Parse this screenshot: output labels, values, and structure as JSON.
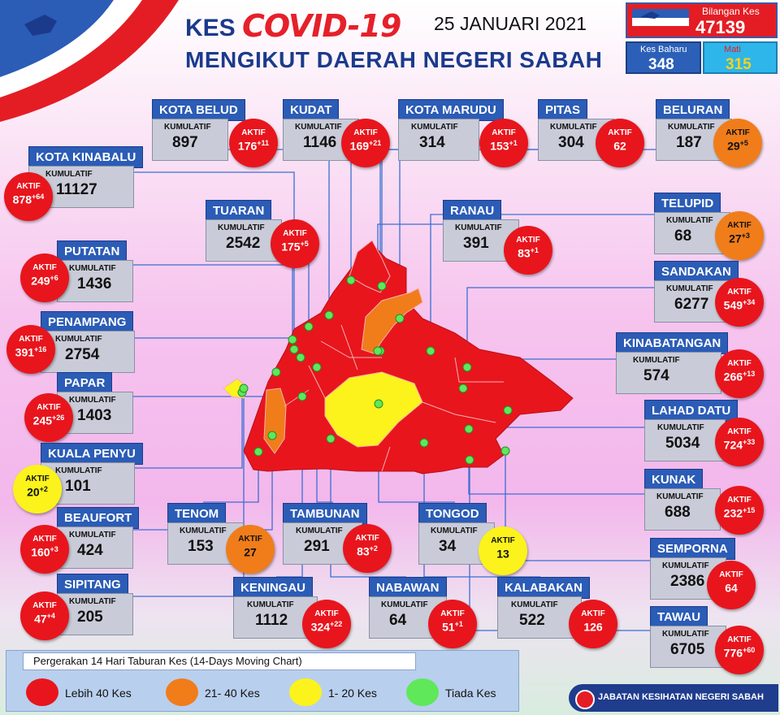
{
  "header": {
    "kes": "KES",
    "covid": "COVID-19",
    "date": "25 JANUARI 2021",
    "subtitle": "MENGIKUT DAERAH NEGERI SABAH"
  },
  "stats": {
    "total_label": "Bilangan Kes",
    "total_value": "47139",
    "new_label": "Kes Baharu",
    "new_value": "348",
    "dead_label": "Mati",
    "dead_value": "315"
  },
  "kumulatif_label": "KUMULATIF",
  "aktif_label": "AKTIF",
  "districts": [
    {
      "name": "KOTA BELUD",
      "kumulatif": "897",
      "aktif": "176",
      "aktif_new": "+11",
      "level": "red"
    },
    {
      "name": "KUDAT",
      "kumulatif": "1146",
      "aktif": "169",
      "aktif_new": "+21",
      "level": "red"
    },
    {
      "name": "KOTA MARUDU",
      "kumulatif": "314",
      "aktif": "153",
      "aktif_new": "+1",
      "level": "red"
    },
    {
      "name": "PITAS",
      "kumulatif": "304",
      "aktif": "62",
      "aktif_new": "",
      "level": "red"
    },
    {
      "name": "BELURAN",
      "kumulatif": "187",
      "aktif": "29",
      "aktif_new": "+5",
      "level": "orange"
    },
    {
      "name": "KOTA KINABALU",
      "kumulatif": "11127",
      "aktif": "878",
      "aktif_new": "+64",
      "level": "red"
    },
    {
      "name": "TUARAN",
      "kumulatif": "2542",
      "aktif": "175",
      "aktif_new": "+5",
      "level": "red"
    },
    {
      "name": "RANAU",
      "kumulatif": "391",
      "aktif": "83",
      "aktif_new": "+1",
      "level": "red"
    },
    {
      "name": "TELUPID",
      "kumulatif": "68",
      "aktif": "27",
      "aktif_new": "+3",
      "level": "orange"
    },
    {
      "name": "PUTATAN",
      "kumulatif": "1436",
      "aktif": "249",
      "aktif_new": "+6",
      "level": "red"
    },
    {
      "name": "SANDAKAN",
      "kumulatif": "6277",
      "aktif": "549",
      "aktif_new": "+34",
      "level": "red"
    },
    {
      "name": "PENAMPANG",
      "kumulatif": "2754",
      "aktif": "391",
      "aktif_new": "+16",
      "level": "red"
    },
    {
      "name": "KINABATANGAN",
      "kumulatif": "574",
      "aktif": "266",
      "aktif_new": "+13",
      "level": "red"
    },
    {
      "name": "PAPAR",
      "kumulatif": "1403",
      "aktif": "245",
      "aktif_new": "+26",
      "level": "red"
    },
    {
      "name": "LAHAD DATU",
      "kumulatif": "5034",
      "aktif": "724",
      "aktif_new": "+33",
      "level": "red"
    },
    {
      "name": "KUALA PENYU",
      "kumulatif": "101",
      "aktif": "20",
      "aktif_new": "+2",
      "level": "yellow"
    },
    {
      "name": "KUNAK",
      "kumulatif": "688",
      "aktif": "232",
      "aktif_new": "+15",
      "level": "red"
    },
    {
      "name": "TENOM",
      "kumulatif": "153",
      "aktif": "27",
      "aktif_new": "",
      "level": "orange"
    },
    {
      "name": "TAMBUNAN",
      "kumulatif": "291",
      "aktif": "83",
      "aktif_new": "+2",
      "level": "red"
    },
    {
      "name": "TONGOD",
      "kumulatif": "34",
      "aktif": "13",
      "aktif_new": "",
      "level": "yellow"
    },
    {
      "name": "BEAUFORT",
      "kumulatif": "424",
      "aktif": "160",
      "aktif_new": "+3",
      "level": "red"
    },
    {
      "name": "SEMPORNA",
      "kumulatif": "2386",
      "aktif": "64",
      "aktif_new": "",
      "level": "red"
    },
    {
      "name": "SIPITANG",
      "kumulatif": "205",
      "aktif": "47",
      "aktif_new": "+4",
      "level": "red"
    },
    {
      "name": "KENINGAU",
      "kumulatif": "1112",
      "aktif": "324",
      "aktif_new": "+22",
      "level": "red"
    },
    {
      "name": "NABAWAN",
      "kumulatif": "64",
      "aktif": "51",
      "aktif_new": "+1",
      "level": "red"
    },
    {
      "name": "KALABAKAN",
      "kumulatif": "522",
      "aktif": "126",
      "aktif_new": "",
      "level": "red"
    },
    {
      "name": "TAWAU",
      "kumulatif": "6705",
      "aktif": "776",
      "aktif_new": "+60",
      "level": "red"
    }
  ],
  "legend": {
    "title": "Pergerakan 14 Hari Taburan Kes (14-Days Moving Chart)",
    "items": [
      {
        "label": "Lebih 40 Kes",
        "color": "#e8151d"
      },
      {
        "label": "21- 40 Kes",
        "color": "#f07d1a"
      },
      {
        "label": "1- 20 Kes",
        "color": "#fbf31b"
      },
      {
        "label": "Tiada Kes",
        "color": "#5ee85a"
      }
    ]
  },
  "footer": {
    "agency": "JABATAN KESIHATAN NEGERI SABAH"
  }
}
